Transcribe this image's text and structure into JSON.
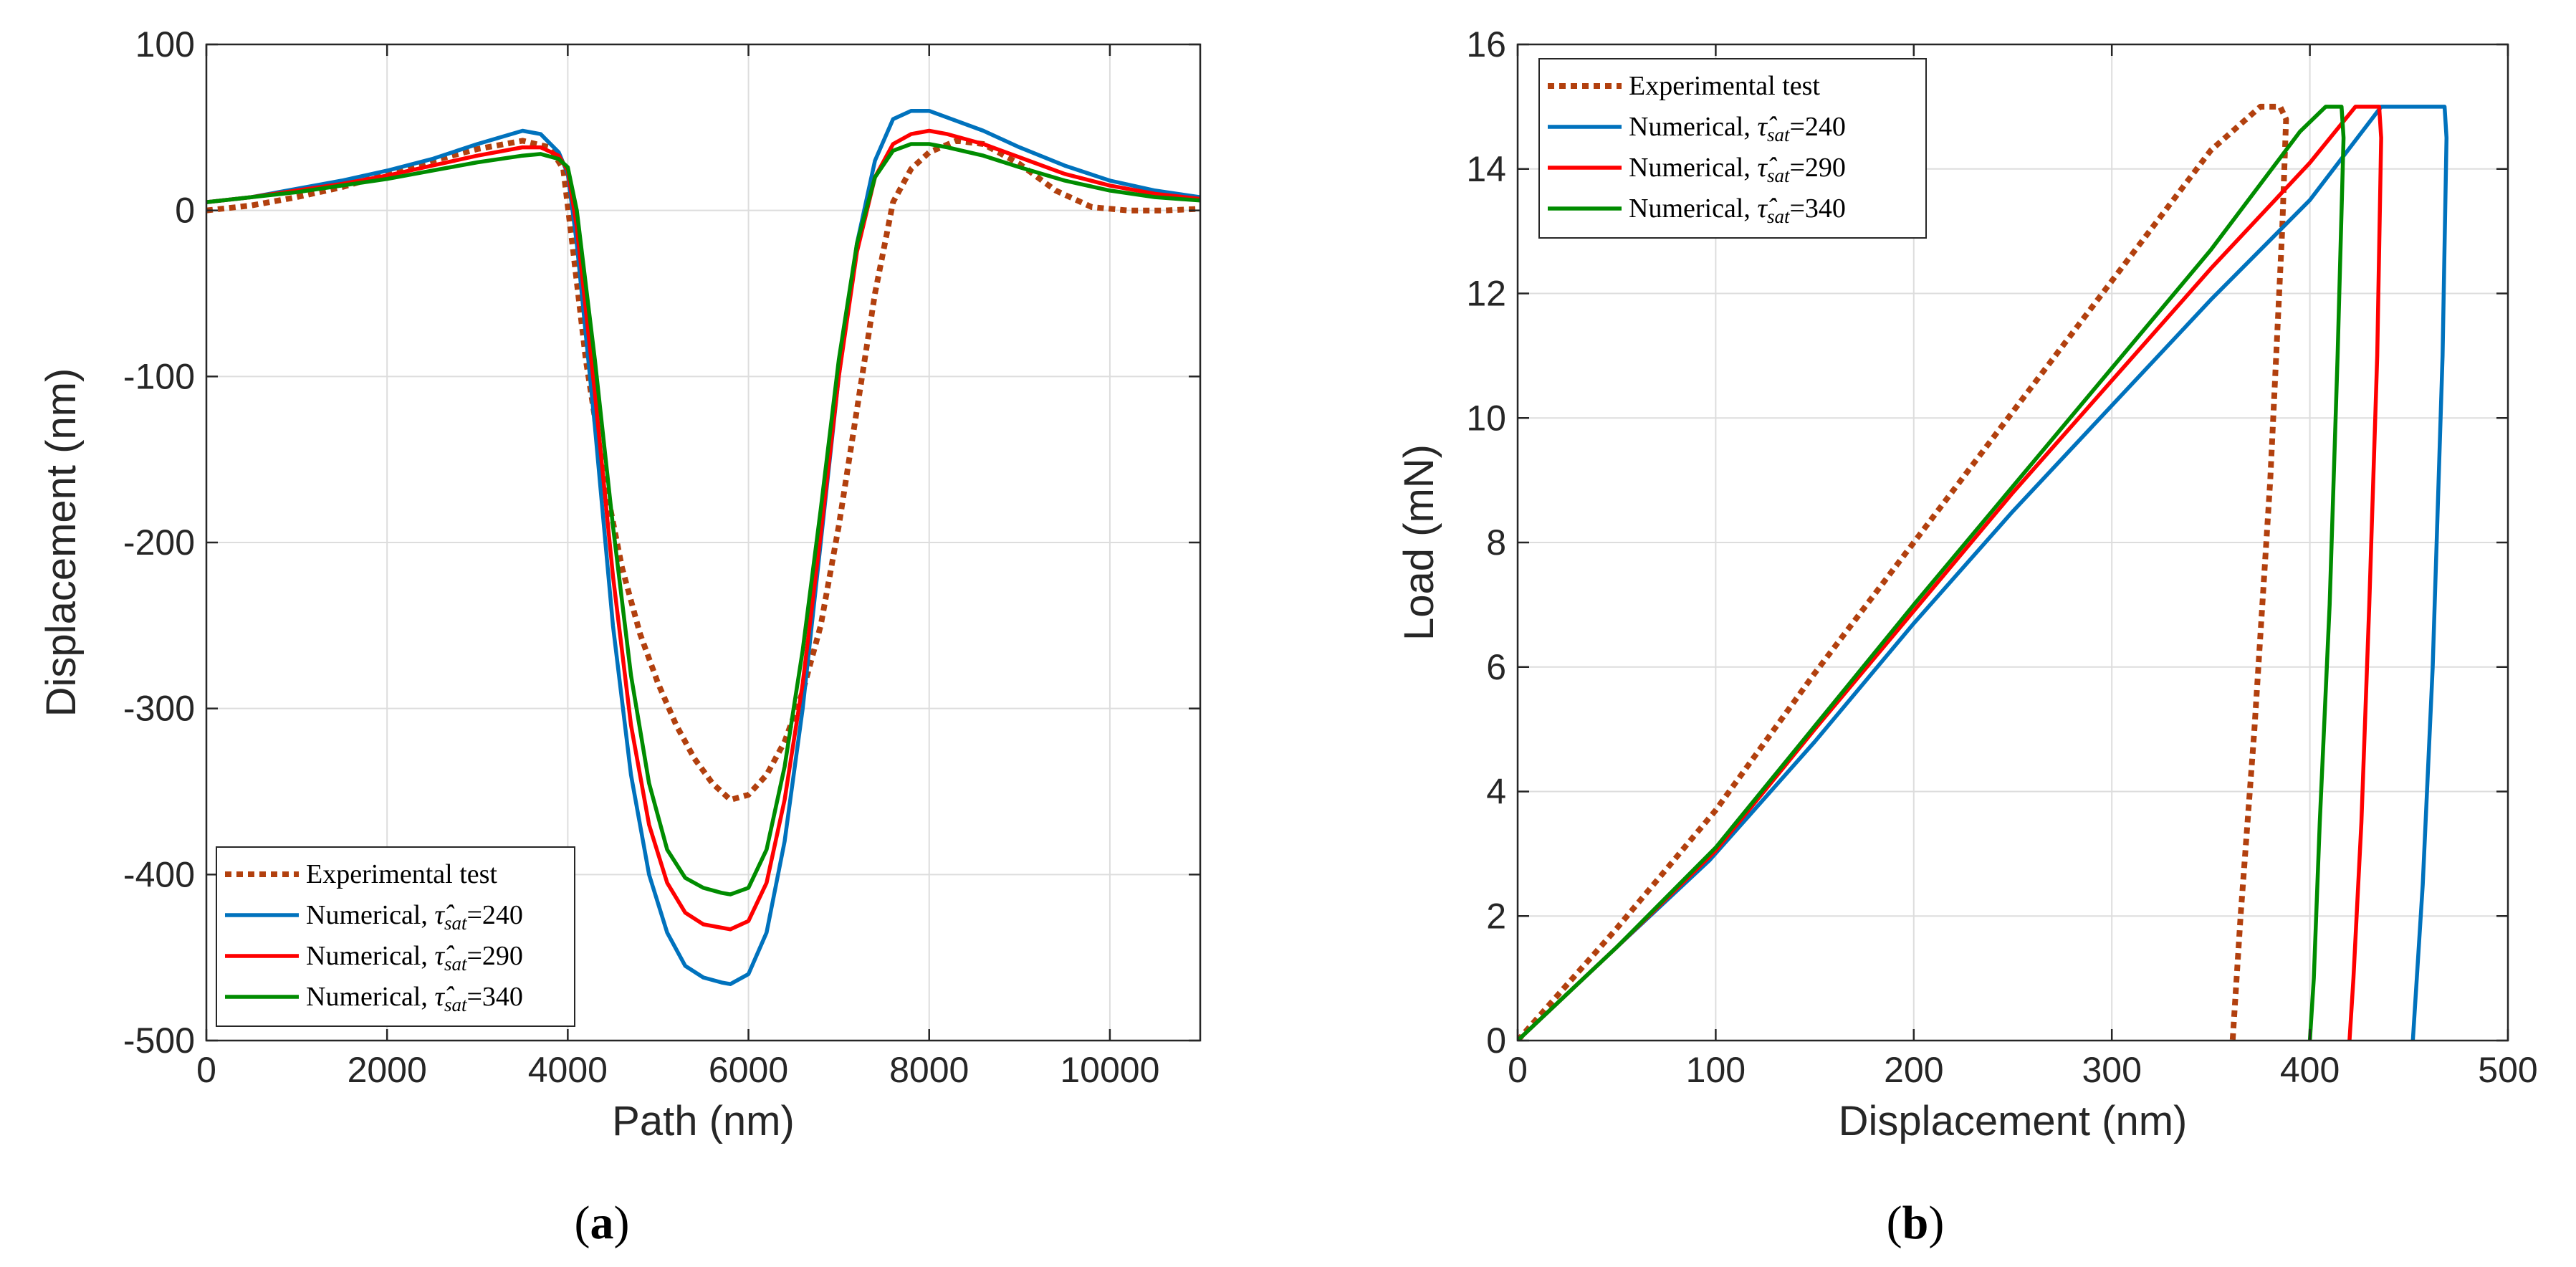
{
  "colors": {
    "experimental": "#B2400E",
    "n240": "#0072BD",
    "n290": "#FF0000",
    "n340": "#008C00",
    "grid": "#DDDDDD",
    "axis": "#262626"
  },
  "captions": {
    "a_open": "(",
    "a_letter": "a",
    "a_close": ")",
    "b_open": "(",
    "b_letter": "b",
    "b_close": ")"
  },
  "chart_data": [
    {
      "id": "a",
      "type": "line",
      "xlabel": "Path (nm)",
      "ylabel": "Displacement (nm)",
      "xlim": [
        0,
        11000
      ],
      "ylim": [
        -500,
        100
      ],
      "xticks": [
        0,
        2000,
        4000,
        6000,
        8000,
        10000
      ],
      "yticks": [
        -500,
        -400,
        -300,
        -200,
        -100,
        0,
        100
      ],
      "xtick_labels": [
        "0",
        "2000",
        "4000",
        "6000",
        "8000",
        "10000"
      ],
      "ytick_labels": [
        "-500",
        "-400",
        "-300",
        "-200",
        "-100",
        "0",
        "100"
      ],
      "grid": true,
      "legend_position": "bottom-left",
      "series": [
        {
          "name": "Experimental test",
          "key": "experimental",
          "dashed": true,
          "x": [
            0,
            500,
            1000,
            1500,
            2000,
            2500,
            3000,
            3500,
            3800,
            3950,
            4050,
            4200,
            4400,
            4600,
            4800,
            5000,
            5200,
            5400,
            5600,
            5800,
            6000,
            6200,
            6400,
            6600,
            6800,
            7000,
            7200,
            7400,
            7600,
            7800,
            8000,
            8300,
            8600,
            9000,
            9400,
            9800,
            10200,
            10600,
            11000
          ],
          "y": [
            0,
            3,
            8,
            14,
            22,
            30,
            37,
            42,
            38,
            25,
            -20,
            -90,
            -160,
            -215,
            -255,
            -285,
            -310,
            -330,
            -345,
            -355,
            -352,
            -340,
            -320,
            -290,
            -250,
            -190,
            -120,
            -50,
            5,
            25,
            35,
            42,
            40,
            28,
            12,
            2,
            0,
            0,
            1
          ]
        },
        {
          "name": "Numerical, τ̂sat=240",
          "key": "n240",
          "label_pre": "Numerical, ",
          "label_sub": "sat",
          "label_post": "=240",
          "x": [
            0,
            500,
            1000,
            1500,
            2000,
            2500,
            3000,
            3500,
            3700,
            3900,
            4000,
            4100,
            4300,
            4500,
            4700,
            4900,
            5100,
            5300,
            5500,
            5700,
            5800,
            6000,
            6200,
            6400,
            6600,
            6800,
            7000,
            7200,
            7400,
            7600,
            7800,
            8000,
            8200,
            8600,
            9000,
            9500,
            10000,
            10500,
            11000
          ],
          "y": [
            5,
            8,
            13,
            18,
            24,
            31,
            40,
            48,
            46,
            35,
            22,
            -20,
            -130,
            -250,
            -340,
            -400,
            -435,
            -455,
            -462,
            -465,
            -466,
            -460,
            -435,
            -380,
            -300,
            -200,
            -100,
            -20,
            30,
            55,
            60,
            60,
            56,
            48,
            38,
            27,
            18,
            12,
            8
          ]
        },
        {
          "name": "Numerical, τ̂sat=290",
          "key": "n290",
          "label_pre": "Numerical, ",
          "label_sub": "sat",
          "label_post": "=290",
          "x": [
            0,
            500,
            1000,
            1500,
            2000,
            2500,
            3000,
            3500,
            3700,
            3900,
            4000,
            4100,
            4300,
            4500,
            4700,
            4900,
            5100,
            5300,
            5500,
            5700,
            5800,
            6000,
            6200,
            6400,
            6600,
            6800,
            7000,
            7200,
            7400,
            7600,
            7800,
            8000,
            8200,
            8600,
            9000,
            9500,
            10000,
            10500,
            11000
          ],
          "y": [
            5,
            8,
            12,
            16,
            21,
            27,
            33,
            38,
            38,
            33,
            24,
            -10,
            -110,
            -220,
            -310,
            -370,
            -405,
            -423,
            -430,
            -432,
            -433,
            -428,
            -405,
            -355,
            -285,
            -195,
            -100,
            -25,
            20,
            40,
            46,
            48,
            46,
            40,
            32,
            22,
            15,
            10,
            7
          ]
        },
        {
          "name": "Numerical, τ̂sat=340",
          "key": "n340",
          "label_pre": "Numerical, ",
          "label_sub": "sat",
          "label_post": "=340",
          "x": [
            0,
            500,
            1000,
            1500,
            2000,
            2500,
            3000,
            3500,
            3700,
            3900,
            4000,
            4100,
            4300,
            4500,
            4700,
            4900,
            5100,
            5300,
            5500,
            5700,
            5800,
            6000,
            6200,
            6400,
            6600,
            6800,
            7000,
            7200,
            7400,
            7600,
            7800,
            8000,
            8200,
            8600,
            9000,
            9500,
            10000,
            10500,
            11000
          ],
          "y": [
            5,
            8,
            11,
            15,
            19,
            24,
            29,
            33,
            34,
            31,
            26,
            0,
            -90,
            -190,
            -280,
            -345,
            -385,
            -402,
            -408,
            -411,
            -412,
            -408,
            -385,
            -335,
            -265,
            -180,
            -90,
            -20,
            20,
            36,
            40,
            40,
            38,
            33,
            26,
            18,
            12,
            8,
            6
          ]
        }
      ]
    },
    {
      "id": "b",
      "type": "line",
      "xlabel": "Displacement (nm)",
      "ylabel": "Load (mN)",
      "xlim": [
        0,
        500
      ],
      "ylim": [
        0,
        16
      ],
      "xticks": [
        0,
        100,
        200,
        300,
        400,
        500
      ],
      "yticks": [
        0,
        2,
        4,
        6,
        8,
        10,
        12,
        14,
        16
      ],
      "xtick_labels": [
        "0",
        "100",
        "200",
        "300",
        "400",
        "500"
      ],
      "ytick_labels": [
        "0",
        "2",
        "4",
        "6",
        "8",
        "10",
        "12",
        "14",
        "16"
      ],
      "grid": true,
      "legend_position": "top-left",
      "series": [
        {
          "name": "Experimental test",
          "key": "experimental",
          "dashed": true,
          "x": [
            0,
            50,
            100,
            150,
            200,
            250,
            300,
            350,
            375,
            385,
            388,
            386,
            380,
            372,
            365,
            361
          ],
          "y": [
            0,
            1.8,
            3.7,
            5.9,
            8.0,
            10.1,
            12.2,
            14.3,
            15.0,
            15.0,
            14.8,
            13.0,
            9.0,
            5.0,
            2.0,
            0
          ]
        },
        {
          "name": "Numerical, τ̂sat=240",
          "key": "n240",
          "label_pre": "Numerical, ",
          "label_sub": "sat",
          "label_post": "=240",
          "x": [
            0,
            50,
            97,
            150,
            200,
            250,
            300,
            350,
            400,
            436,
            450,
            460,
            468,
            469,
            467,
            462,
            457,
            452
          ],
          "y": [
            0,
            1.5,
            2.9,
            4.8,
            6.7,
            8.5,
            10.2,
            11.9,
            13.5,
            15.0,
            15.0,
            15.0,
            15.0,
            14.5,
            11.0,
            6.0,
            2.5,
            0
          ]
        },
        {
          "name": "Numerical, τ̂sat=290",
          "key": "n290",
          "label_pre": "Numerical, ",
          "label_sub": "sat",
          "label_post": "=290",
          "x": [
            0,
            50,
            100,
            150,
            200,
            250,
            300,
            350,
            400,
            423,
            435,
            436,
            434,
            430,
            426,
            422,
            420
          ],
          "y": [
            0,
            1.5,
            3.05,
            5.0,
            6.9,
            8.8,
            10.6,
            12.4,
            14.1,
            15.0,
            15.0,
            14.5,
            11.0,
            7.0,
            3.5,
            1.0,
            0
          ]
        },
        {
          "name": "Numerical, τ̂sat=340",
          "key": "n340",
          "label_pre": "Numerical, ",
          "label_sub": "sat",
          "label_post": "=340",
          "x": [
            0,
            50,
            100,
            150,
            200,
            250,
            300,
            350,
            395,
            408,
            416,
            417,
            414,
            410,
            405,
            402,
            400
          ],
          "y": [
            0,
            1.5,
            3.1,
            5.05,
            7.0,
            8.9,
            10.8,
            12.7,
            14.6,
            15.0,
            15.0,
            14.5,
            11.0,
            7.0,
            3.5,
            1.0,
            0
          ]
        }
      ]
    }
  ]
}
